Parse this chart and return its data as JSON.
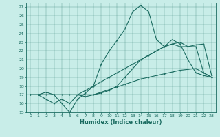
{
  "xlabel": "Humidex (Indice chaleur)",
  "bg_color": "#c8ede8",
  "line_color": "#1a6b60",
  "xlim": [
    -0.5,
    23.5
  ],
  "ylim": [
    15,
    27.5
  ],
  "yticks": [
    15,
    16,
    17,
    18,
    19,
    20,
    21,
    22,
    23,
    24,
    25,
    26,
    27
  ],
  "xticks": [
    0,
    1,
    2,
    3,
    4,
    5,
    6,
    7,
    8,
    9,
    10,
    11,
    12,
    13,
    14,
    15,
    16,
    17,
    18,
    19,
    20,
    21,
    22,
    23
  ],
  "series": [
    [
      17,
      17,
      17.3,
      17,
      16,
      15,
      16.5,
      17.2,
      18,
      20.5,
      22,
      23.2,
      24.5,
      26.5,
      27.2,
      26.5,
      23.3,
      22.5,
      23.3,
      22.8,
      21,
      19.5,
      19.2,
      19
    ],
    [
      17,
      17,
      16.5,
      16,
      16.5,
      16,
      17,
      16.8,
      17,
      17.2,
      17.5,
      18,
      19,
      20,
      21,
      21.5,
      22,
      22.5,
      22.8,
      23,
      22.5,
      22.7,
      22.8,
      19.2
    ],
    [
      17,
      17,
      17,
      17,
      17,
      17,
      17,
      17,
      17,
      17.3,
      17.6,
      17.9,
      18.2,
      18.5,
      18.8,
      19.0,
      19.2,
      19.4,
      19.6,
      19.8,
      19.9,
      20.0,
      19.5,
      19.0
    ],
    [
      17,
      17,
      17,
      17,
      17,
      17,
      17,
      17.5,
      18,
      18.5,
      19,
      19.5,
      20,
      20.5,
      21,
      21.5,
      22,
      22.5,
      22.8,
      22.5,
      22.5,
      22.5,
      19.5,
      19.0
    ]
  ]
}
